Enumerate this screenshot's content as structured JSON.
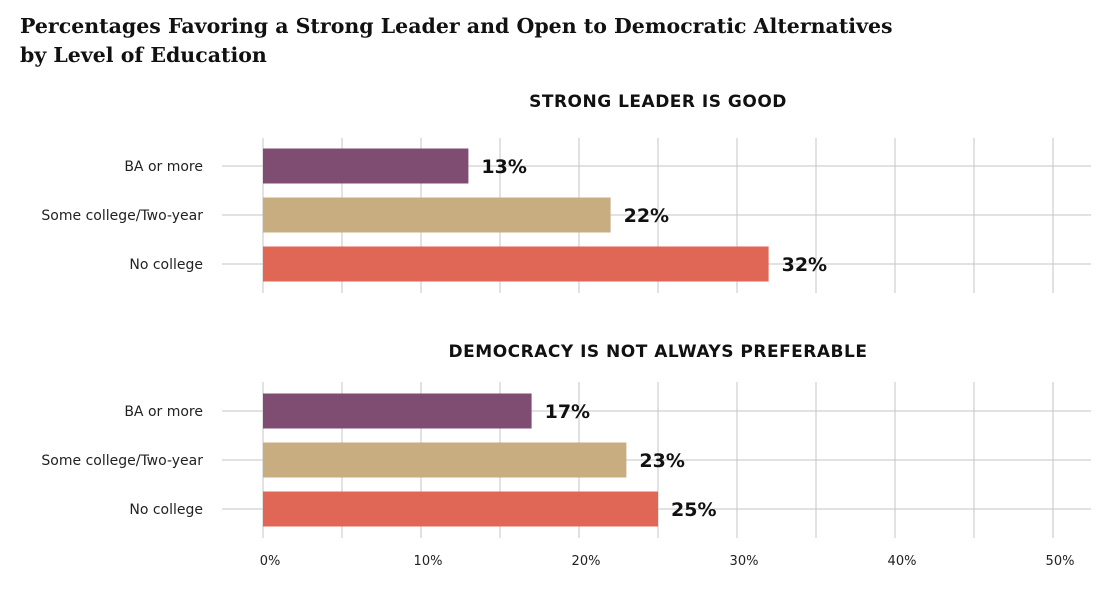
{
  "title_line1": "Percentages Favoring a Strong Leader and Open to Democratic Alternatives",
  "title_line2": "by Level of Education",
  "chart_data": [
    {
      "type": "bar",
      "orientation": "horizontal",
      "title": "STRONG LEADER IS GOOD",
      "categories": [
        "BA or more",
        "Some college/Two-year",
        "No college"
      ],
      "values": [
        13,
        22,
        32
      ],
      "value_labels": [
        "13%",
        "22%",
        "32%"
      ],
      "colors": [
        "#7f4c72",
        "#c8ad80",
        "#e06655"
      ],
      "xlim": [
        0,
        52
      ],
      "grid": true
    },
    {
      "type": "bar",
      "orientation": "horizontal",
      "title": "DEMOCRACY IS NOT ALWAYS PREFERABLE",
      "categories": [
        "BA or more",
        "Some college/Two-year",
        "No college"
      ],
      "values": [
        17,
        23,
        25
      ],
      "value_labels": [
        "17%",
        "23%",
        "25%"
      ],
      "colors": [
        "#7f4c72",
        "#c8ad80",
        "#e06655"
      ],
      "xlim": [
        0,
        52
      ],
      "grid": true,
      "xticks": [
        0,
        10,
        20,
        30,
        40,
        50
      ],
      "xtick_labels": [
        "0%",
        "10%",
        "20%",
        "30%",
        "40%",
        "50%"
      ]
    }
  ]
}
